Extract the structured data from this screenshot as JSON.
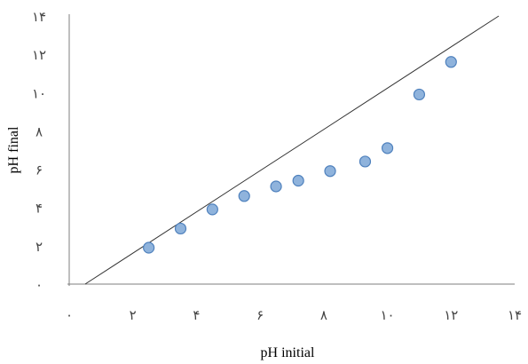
{
  "chart_data": {
    "type": "scatter",
    "title": "",
    "xlabel": "pH initial",
    "ylabel": "pH final",
    "xlim": [
      0,
      14
    ],
    "ylim": [
      0,
      14
    ],
    "x_ticks": [
      0,
      2,
      4,
      6,
      8,
      10,
      12,
      14
    ],
    "y_ticks": [
      0,
      2,
      4,
      6,
      8,
      10,
      12,
      14
    ],
    "x_tick_labels": [
      "۰",
      "۲",
      "۴",
      "۶",
      "۸",
      "۱۰",
      "۱۲",
      "۱۴"
    ],
    "y_tick_labels": [
      "۰",
      "۲",
      "۴",
      "۶",
      "۸",
      "۱۰",
      "۱۲",
      "۱۴"
    ],
    "grid": false,
    "legend": false,
    "reference_line": {
      "from": [
        0.5,
        0
      ],
      "to": [
        13.5,
        14
      ],
      "color": "#333333"
    },
    "series": [
      {
        "marker_color": "#8FB3DC",
        "marker_edge_color": "#4F81BD",
        "x": [
          2.5,
          3.5,
          4.5,
          5.5,
          6.5,
          7.2,
          8.2,
          9.3,
          10.0,
          11.0,
          12.0
        ],
        "y": [
          1.9,
          2.9,
          3.9,
          4.6,
          5.1,
          5.4,
          5.9,
          6.4,
          7.1,
          9.9,
          11.6
        ]
      }
    ]
  }
}
